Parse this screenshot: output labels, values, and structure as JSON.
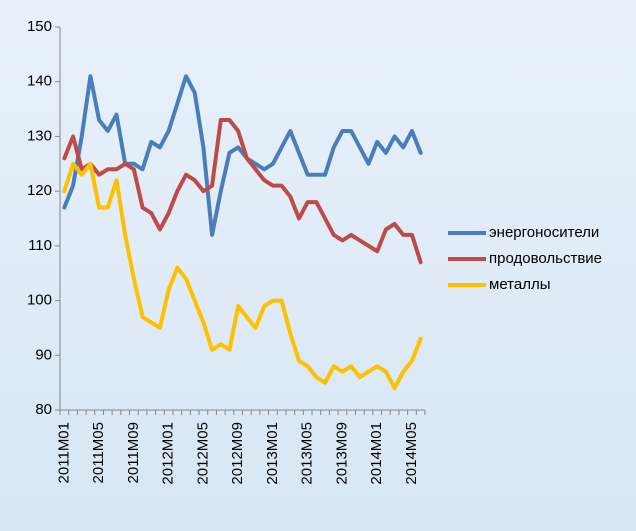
{
  "chart_data": {
    "type": "line",
    "categories": [
      "2011M01",
      null,
      null,
      null,
      "2011M05",
      null,
      null,
      null,
      "2011M09",
      null,
      null,
      null,
      "2012M01",
      null,
      null,
      null,
      "2012M05",
      null,
      null,
      null,
      "2012M09",
      null,
      null,
      null,
      "2013M01",
      null,
      null,
      null,
      "2013M05",
      null,
      null,
      null,
      "2013M09",
      null,
      null,
      null,
      "2014M01",
      null,
      null,
      null,
      "2014M05",
      null
    ],
    "series": [
      {
        "name": "энергоносители",
        "color": "#4a7ebb",
        "values": [
          117,
          121,
          130,
          141,
          133,
          131,
          134,
          125,
          125,
          124,
          129,
          128,
          131,
          136,
          141,
          138,
          128,
          112,
          120,
          127,
          128,
          126,
          125,
          124,
          125,
          128,
          131,
          127,
          123,
          123,
          123,
          128,
          131,
          131,
          128,
          125,
          129,
          127,
          130,
          128,
          131,
          127
        ]
      },
      {
        "name": "продовольствие",
        "color": "#be4b48",
        "values": [
          126,
          130,
          124,
          125,
          123,
          124,
          124,
          125,
          124,
          117,
          116,
          113,
          116,
          120,
          123,
          122,
          120,
          121,
          133,
          133,
          131,
          126,
          124,
          122,
          121,
          121,
          119,
          115,
          118,
          118,
          115,
          112,
          111,
          112,
          111,
          110,
          109,
          113,
          114,
          112,
          112,
          107
        ]
      },
      {
        "name": "металлы",
        "color": "#ffc000",
        "values": [
          120,
          125,
          123,
          125,
          117,
          117,
          122,
          112,
          104,
          97,
          96,
          95,
          102,
          106,
          104,
          100,
          96,
          91,
          92,
          91,
          99,
          97,
          95,
          99,
          100,
          100,
          94,
          89,
          88,
          86,
          85,
          88,
          87,
          88,
          86,
          87,
          88,
          87,
          84,
          87,
          89,
          93
        ]
      }
    ],
    "ylim": [
      80,
      150
    ],
    "yticks": [
      80,
      90,
      100,
      110,
      120,
      130,
      140,
      150
    ],
    "legend": "right"
  }
}
